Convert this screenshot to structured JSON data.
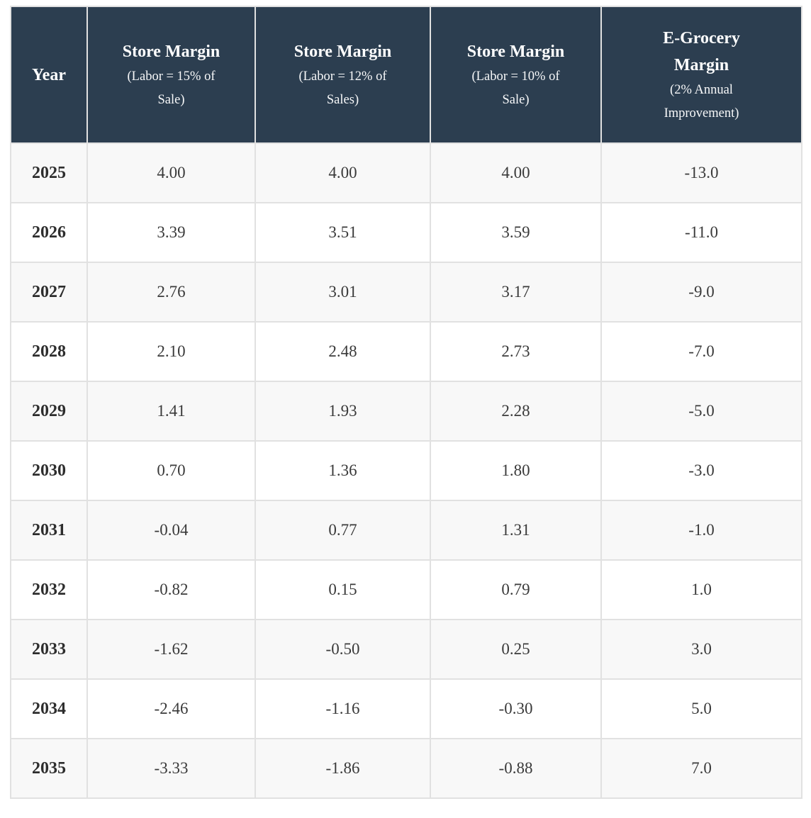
{
  "colors": {
    "header_bg": "#2c3e50",
    "header_text": "#ffffff",
    "row_bg": "#ffffff",
    "row_alt_bg": "#f8f8f8",
    "border": "#e1e1e1",
    "cell_text": "#3a3a3a"
  },
  "table": {
    "columns": [
      {
        "title": "Year",
        "subtitle": ""
      },
      {
        "title": "Store Margin",
        "subtitle": "(Labor = 15% of Sale)"
      },
      {
        "title": "Store Margin",
        "subtitle": "(Labor = 12% of Sales)"
      },
      {
        "title": "Store Margin",
        "subtitle": "(Labor = 10% of Sale)"
      },
      {
        "title": "E-Grocery Margin",
        "subtitle": "(2% Annual Improvement)"
      }
    ],
    "rows": [
      {
        "year": "2025",
        "values": [
          "4.00",
          "4.00",
          "4.00",
          "-13.0"
        ]
      },
      {
        "year": "2026",
        "values": [
          "3.39",
          "3.51",
          "3.59",
          "-11.0"
        ]
      },
      {
        "year": "2027",
        "values": [
          "2.76",
          "3.01",
          "3.17",
          "-9.0"
        ]
      },
      {
        "year": "2028",
        "values": [
          "2.10",
          "2.48",
          "2.73",
          "-7.0"
        ]
      },
      {
        "year": "2029",
        "values": [
          "1.41",
          "1.93",
          "2.28",
          "-5.0"
        ]
      },
      {
        "year": "2030",
        "values": [
          "0.70",
          "1.36",
          "1.80",
          "-3.0"
        ]
      },
      {
        "year": "2031",
        "values": [
          "-0.04",
          "0.77",
          "1.31",
          "-1.0"
        ]
      },
      {
        "year": "2032",
        "values": [
          "-0.82",
          "0.15",
          "0.79",
          "1.0"
        ]
      },
      {
        "year": "2033",
        "values": [
          "-1.62",
          "-0.50",
          "0.25",
          "3.0"
        ]
      },
      {
        "year": "2034",
        "values": [
          "-2.46",
          "-1.16",
          "-0.30",
          "5.0"
        ]
      },
      {
        "year": "2035",
        "values": [
          "-3.33",
          "-1.86",
          "-0.88",
          "7.0"
        ]
      }
    ]
  },
  "chart_data": {
    "type": "table",
    "categories": [
      "2025",
      "2026",
      "2027",
      "2028",
      "2029",
      "2030",
      "2031",
      "2032",
      "2033",
      "2034",
      "2035"
    ],
    "series": [
      {
        "name": "Store Margin (Labor = 15% of Sale)",
        "values": [
          4.0,
          3.39,
          2.76,
          2.1,
          1.41,
          0.7,
          -0.04,
          -0.82,
          -1.62,
          -2.46,
          -3.33
        ]
      },
      {
        "name": "Store Margin (Labor = 12% of Sales)",
        "values": [
          4.0,
          3.51,
          3.01,
          2.48,
          1.93,
          1.36,
          0.77,
          0.15,
          -0.5,
          -1.16,
          -1.86
        ]
      },
      {
        "name": "Store Margin (Labor = 10% of Sale)",
        "values": [
          4.0,
          3.59,
          3.17,
          2.73,
          2.28,
          1.8,
          1.31,
          0.79,
          0.25,
          -0.3,
          -0.88
        ]
      },
      {
        "name": "E-Grocery Margin (2% Annual Improvement)",
        "values": [
          -13.0,
          -11.0,
          -9.0,
          -7.0,
          -5.0,
          -3.0,
          -1.0,
          1.0,
          3.0,
          5.0,
          7.0
        ]
      }
    ],
    "title": "",
    "xlabel": "Year",
    "ylabel": "Margin"
  }
}
